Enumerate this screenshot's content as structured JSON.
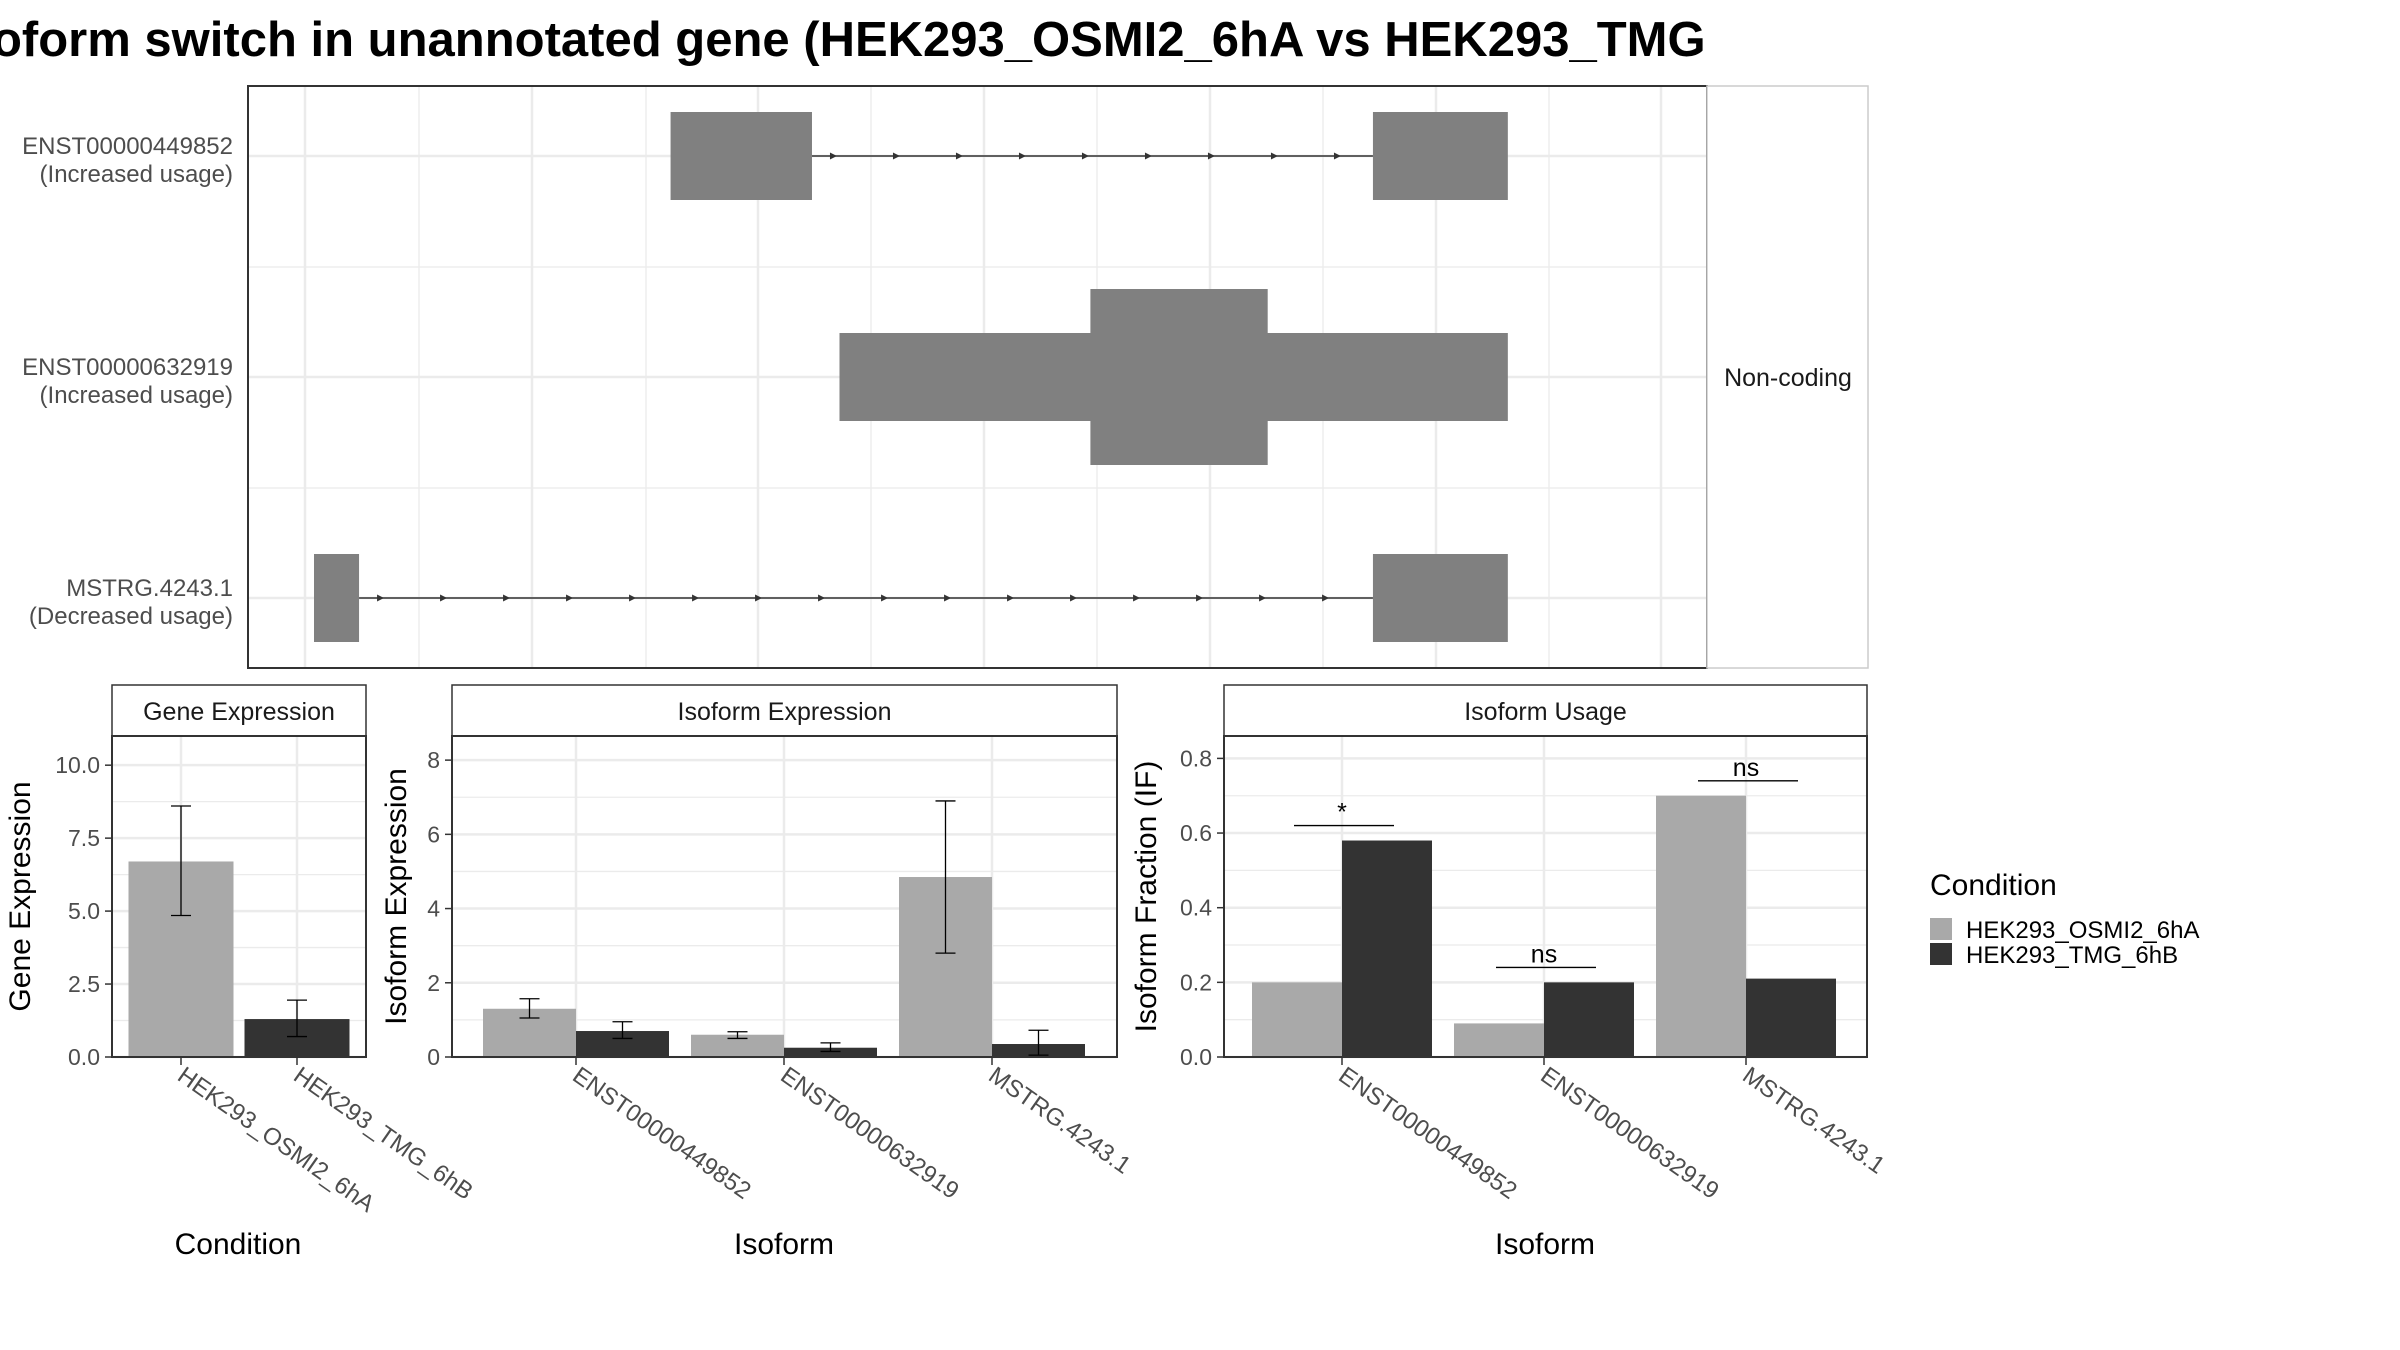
{
  "figure": {
    "title": "oform switch in unannotated gene (HEK293_OSMI2_6hA vs HEK293_TMG",
    "colors": {
      "cond1": "#a9a9a9",
      "cond2": "#333333",
      "exon": "#808080",
      "panel_border": "#333333",
      "grid": "#ebebeb"
    }
  },
  "chart_data": [
    {
      "type": "transcript-structure",
      "facet_label": "Non-coding",
      "transcripts": [
        {
          "id": "ENST00000449852",
          "usage": "(Increased usage)",
          "exons": [
            {
              "start": 0.2683,
              "end": 0.3747,
              "tall": false
            },
            {
              "start": 0.7968,
              "end": 0.8983,
              "tall": false
            }
          ],
          "intron": [
            0.3747,
            0.7968
          ]
        },
        {
          "id": "ENST00000632919",
          "usage": "(Increased usage)",
          "exons": [
            {
              "start": 0.3954,
              "end": 0.8983,
              "tall": false
            },
            {
              "start": 0.5842,
              "end": 0.7176,
              "tall": true
            }
          ],
          "intron": null
        },
        {
          "id": "MSTRG.4243.1",
          "usage": "(Decreased usage)",
          "exons": [
            {
              "start": 0.0,
              "end": 0.0339,
              "tall": false
            },
            {
              "start": 0.7968,
              "end": 0.8983,
              "tall": false
            }
          ],
          "intron": [
            0.0339,
            0.7968
          ]
        }
      ]
    },
    {
      "type": "bar",
      "facet_label": "Gene Expression",
      "xlabel": "Condition",
      "ylabel": "Gene Expression",
      "ylim": [
        0,
        11
      ],
      "ticks": [
        0.0,
        2.5,
        5.0,
        7.5,
        10.0
      ],
      "tick_labels": [
        "0.0",
        "2.5",
        "5.0",
        "7.5",
        "10.0"
      ],
      "categories": [
        "HEK293_OSMI2_6hA",
        "HEK293_TMG_6hB"
      ],
      "values": [
        6.7,
        1.3
      ],
      "errors": [
        [
          4.85,
          8.6
        ],
        [
          0.7,
          1.95
        ]
      ]
    },
    {
      "type": "bar",
      "facet_label": "Isoform Expression",
      "xlabel": "Isoform",
      "ylabel": "Isoform Expression",
      "ylim": [
        0,
        8.65
      ],
      "ticks": [
        0,
        2,
        4,
        6,
        8
      ],
      "tick_labels": [
        "0",
        "2",
        "4",
        "6",
        "8"
      ],
      "categories": [
        "ENST00000449852",
        "ENST00000632919",
        "MSTRG.4243.1"
      ],
      "series": [
        {
          "name": "HEK293_OSMI2_6hA",
          "values": [
            1.3,
            0.6,
            4.85
          ],
          "errors": [
            [
              1.05,
              1.57
            ],
            [
              0.5,
              0.68
            ],
            [
              2.8,
              6.9
            ]
          ]
        },
        {
          "name": "HEK293_TMG_6hB",
          "values": [
            0.7,
            0.25,
            0.35
          ],
          "errors": [
            [
              0.5,
              0.95
            ],
            [
              0.15,
              0.38
            ],
            [
              0.05,
              0.72
            ]
          ]
        }
      ]
    },
    {
      "type": "bar",
      "facet_label": "Isoform Usage",
      "xlabel": "Isoform",
      "ylabel": "Isoform Fraction (IF)",
      "ylim": [
        0,
        0.86
      ],
      "ticks": [
        0.0,
        0.2,
        0.4,
        0.6,
        0.8
      ],
      "tick_labels": [
        "0.0",
        "0.2",
        "0.4",
        "0.6",
        "0.8"
      ],
      "categories": [
        "ENST00000449852",
        "ENST00000632919",
        "MSTRG.4243.1"
      ],
      "series": [
        {
          "name": "HEK293_OSMI2_6hA",
          "values": [
            0.2,
            0.09,
            0.7
          ]
        },
        {
          "name": "HEK293_TMG_6hB",
          "values": [
            0.58,
            0.2,
            0.21
          ]
        }
      ],
      "significance": [
        {
          "label": "*",
          "y": 0.62
        },
        {
          "label": "ns",
          "y": 0.24
        },
        {
          "label": "ns",
          "y": 0.74
        }
      ]
    }
  ],
  "legend": {
    "title": "Condition",
    "items": [
      "HEK293_OSMI2_6hA",
      "HEK293_TMG_6hB"
    ]
  }
}
